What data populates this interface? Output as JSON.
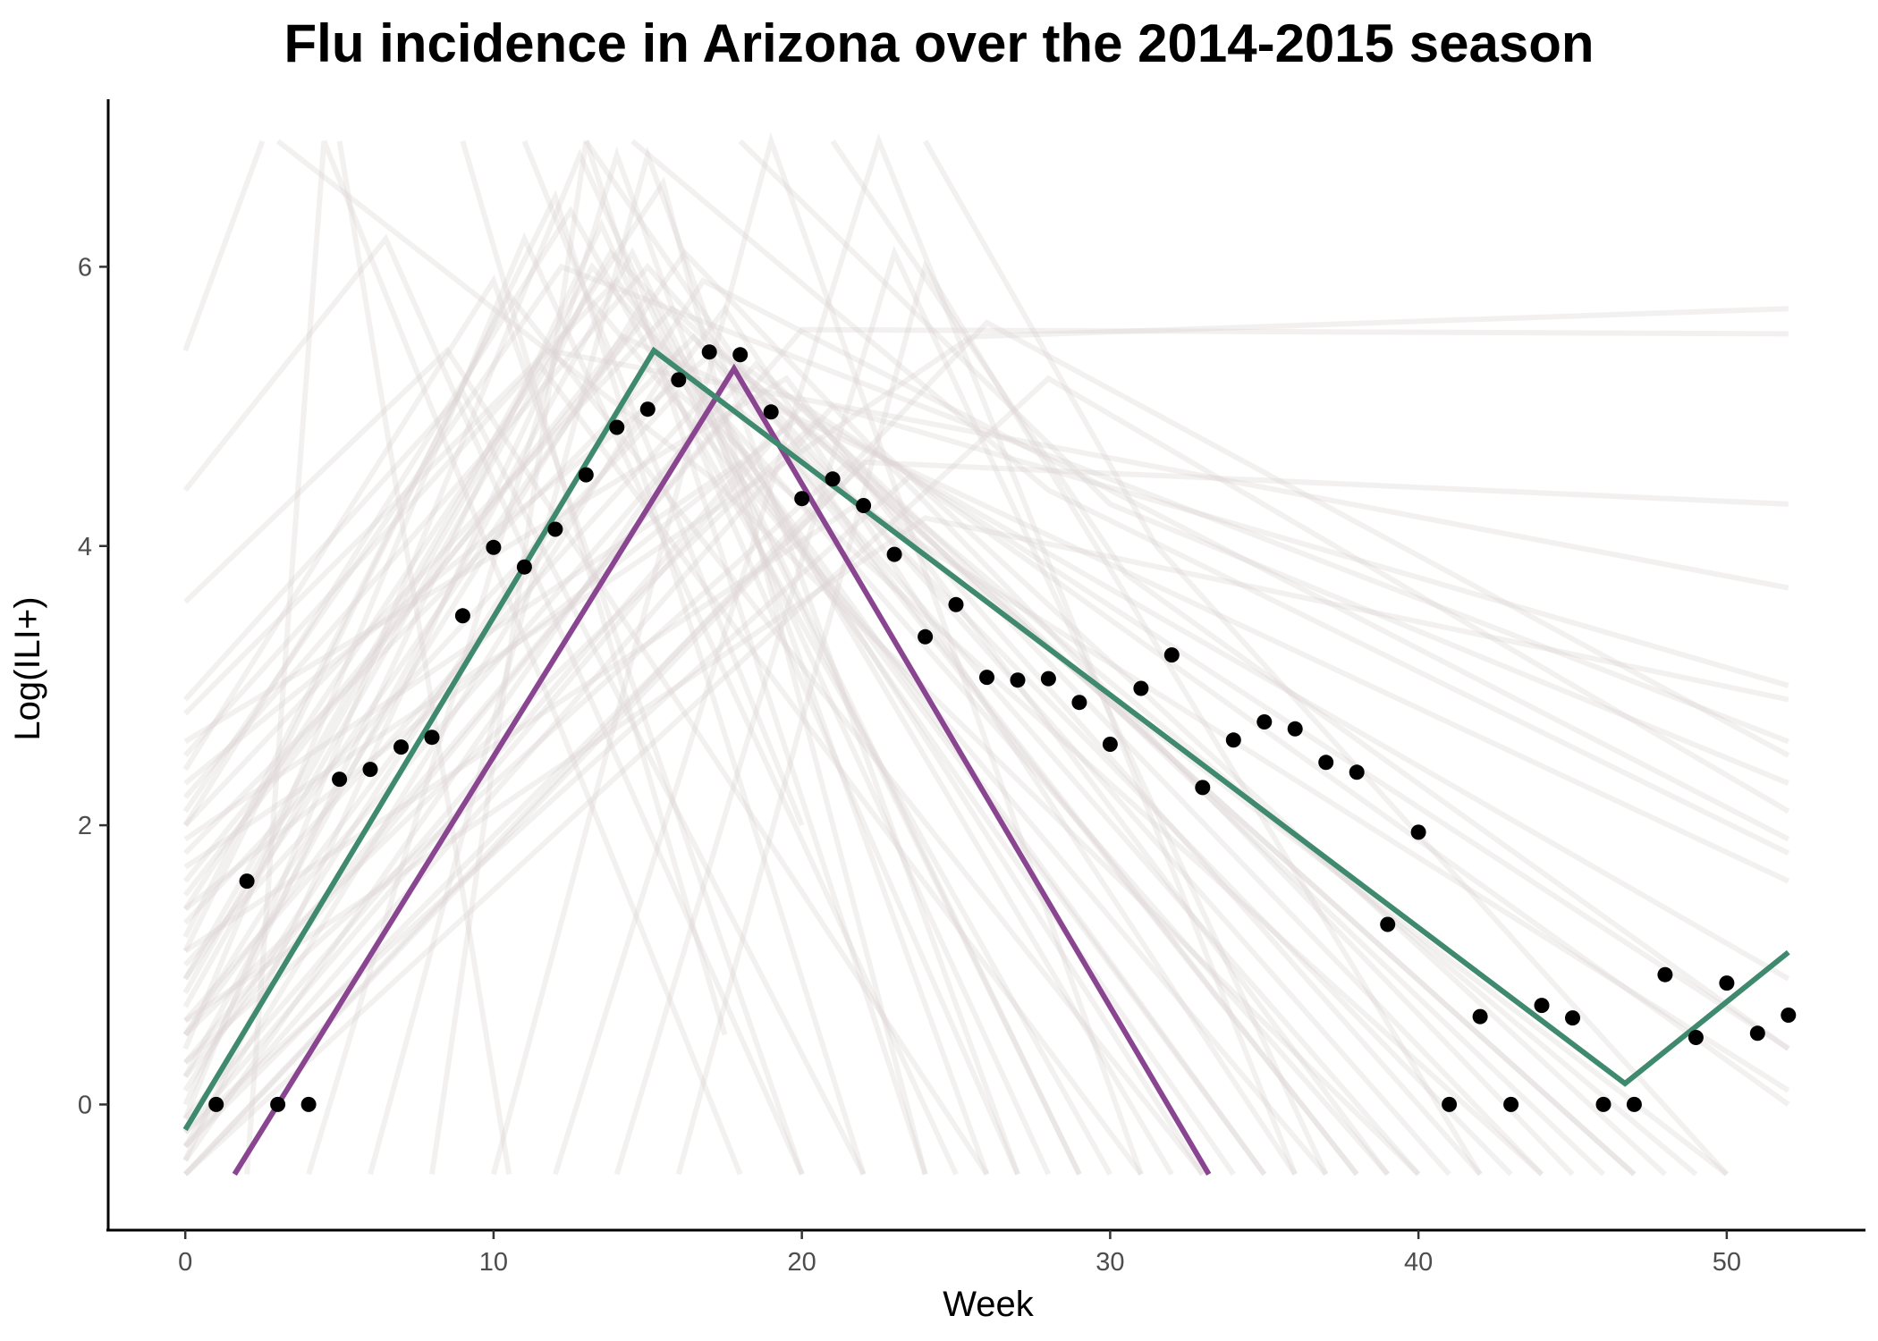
{
  "chart_data": {
    "type": "line",
    "title": "Flu incidence in Arizona over the 2014-2015 season",
    "xlabel": "Week",
    "ylabel": "Log(ILI+)",
    "xlim": [
      -2.5,
      54.5
    ],
    "ylim": [
      -0.9,
      7.2
    ],
    "x_ticks": [
      0,
      10,
      20,
      30,
      40,
      50
    ],
    "y_ticks": [
      0,
      2,
      4,
      6
    ],
    "grid": false,
    "legend": "none",
    "observed": {
      "x": [
        1,
        2,
        3,
        4,
        5,
        6,
        7,
        8,
        9,
        10,
        11,
        12,
        13,
        14,
        15,
        16,
        17,
        18,
        19,
        20,
        21,
        22,
        23,
        24,
        25,
        26,
        27,
        28,
        29,
        30,
        31,
        32,
        33,
        34,
        35,
        36,
        37,
        38,
        39,
        40,
        41,
        42,
        43,
        44,
        45,
        46,
        47,
        48,
        49,
        50,
        51,
        52
      ],
      "y": [
        0.0,
        1.6,
        0.0,
        0.0,
        2.33,
        2.4,
        2.56,
        2.63,
        3.5,
        3.99,
        3.85,
        4.12,
        4.51,
        4.85,
        4.98,
        5.19,
        5.39,
        5.37,
        4.96,
        4.34,
        4.48,
        4.29,
        3.94,
        3.35,
        3.58,
        3.06,
        3.04,
        3.05,
        2.88,
        2.58,
        2.98,
        3.22,
        2.27,
        2.61,
        2.74,
        2.69,
        2.45,
        2.38,
        1.29,
        1.95,
        0.0,
        0.63,
        0.0,
        0.71,
        0.62,
        0.0,
        0.0,
        0.93,
        0.48,
        0.87,
        0.51,
        0.64
      ],
      "color": "#000000"
    },
    "fit_green": {
      "x": [
        0,
        15.2,
        46.7,
        52
      ],
      "y": [
        -0.18,
        5.4,
        0.15,
        1.09
      ],
      "color": "#3f8a6e"
    },
    "fit_purple": {
      "x": [
        1.6,
        17.8,
        33.2
      ],
      "y": [
        -0.5,
        5.27,
        -0.5
      ],
      "color": "#8a4590"
    },
    "background_color": "#dcd4d4",
    "background_opacity": 0.35,
    "background_curves": [
      {
        "x": [
          0,
          14.5,
          29
        ],
        "y": [
          0.2,
          6.1,
          -0.5
        ]
      },
      {
        "x": [
          0,
          12.0,
          22
        ],
        "y": [
          1.1,
          6.5,
          -0.5
        ]
      },
      {
        "x": [
          0,
          16.0,
          33
        ],
        "y": [
          -0.3,
          5.4,
          -0.5
        ]
      },
      {
        "x": [
          0,
          17.5,
          36
        ],
        "y": [
          0.5,
          5.7,
          -0.5
        ]
      },
      {
        "x": [
          0,
          10.0,
          20
        ],
        "y": [
          2.4,
          5.9,
          -0.5
        ]
      },
      {
        "x": [
          0,
          13.5,
          27
        ],
        "y": [
          0.0,
          6.3,
          -0.5
        ]
      },
      {
        "x": [
          0,
          19.0,
          40
        ],
        "y": [
          -0.1,
          4.8,
          -0.5
        ]
      },
      {
        "x": [
          0,
          15.5,
          24
        ],
        "y": [
          1.4,
          6.6,
          -0.5
        ]
      },
      {
        "x": [
          0,
          11.5,
          31
        ],
        "y": [
          0.8,
          5.3,
          -0.5
        ]
      },
      {
        "x": [
          0,
          14.0,
          35
        ],
        "y": [
          2.8,
          5.9,
          -0.5
        ]
      },
      {
        "x": [
          0,
          16.5,
          38
        ],
        "y": [
          1.8,
          5.5,
          -0.5
        ]
      },
      {
        "x": [
          0,
          8.5,
          26
        ],
        "y": [
          3.6,
          5.4,
          -0.5
        ]
      },
      {
        "x": [
          0,
          20.0,
          44
        ],
        "y": [
          -0.2,
          5.0,
          -0.5
        ]
      },
      {
        "x": [
          0,
          21.5,
          42
        ],
        "y": [
          0.3,
          4.6,
          -0.5
        ]
      },
      {
        "x": [
          0,
          12.5,
          30
        ],
        "y": [
          2.0,
          6.4,
          -0.5
        ]
      },
      {
        "x": [
          0,
          17.0,
          32
        ],
        "y": [
          1.0,
          5.1,
          -0.5
        ]
      },
      {
        "x": [
          0,
          13.0,
          37
        ],
        "y": [
          -0.4,
          5.8,
          -0.5
        ]
      },
      {
        "x": [
          0,
          18.5,
          46
        ],
        "y": [
          0.6,
          5.3,
          -0.5
        ]
      },
      {
        "x": [
          0,
          15.0,
          41
        ],
        "y": [
          2.2,
          6.0,
          -0.5
        ]
      },
      {
        "x": [
          0,
          22.5,
          48
        ],
        "y": [
          -0.3,
          4.7,
          -0.5
        ]
      },
      {
        "x": [
          0,
          11.0,
          25
        ],
        "y": [
          0.4,
          6.2,
          -0.5
        ]
      },
      {
        "x": [
          0,
          14.8,
          34
        ],
        "y": [
          1.6,
          5.6,
          -0.5
        ]
      },
      {
        "x": [
          0,
          16.2,
          45
        ],
        "y": [
          0.9,
          6.1,
          -0.5
        ]
      },
      {
        "x": [
          0,
          19.5,
          39
        ],
        "y": [
          2.6,
          5.2,
          -0.5
        ]
      },
      {
        "x": [
          0,
          12.8,
          28
        ],
        "y": [
          -0.1,
          6.8,
          -0.5
        ]
      },
      {
        "x": [
          0,
          17.8,
          50
        ],
        "y": [
          0.2,
          5.0,
          -0.5
        ]
      },
      {
        "x": [
          0,
          23.5,
          52
        ],
        "y": [
          -0.2,
          4.5,
          0.0
        ]
      },
      {
        "x": [
          0,
          10.5,
          33
        ],
        "y": [
          1.2,
          5.8,
          -0.5
        ]
      },
      {
        "x": [
          0,
          13.8,
          43
        ],
        "y": [
          0.7,
          6.1,
          -0.5
        ]
      },
      {
        "x": [
          0,
          15.8,
          47
        ],
        "y": [
          2.0,
          5.7,
          -0.5
        ]
      },
      {
        "x": [
          0,
          18.0,
          52
        ],
        "y": [
          -0.4,
          5.3,
          0.4
        ]
      },
      {
        "x": [
          0,
          20.5,
          52
        ],
        "y": [
          0.5,
          4.9,
          0.9
        ]
      },
      {
        "x": [
          0,
          14.2,
          52
        ],
        "y": [
          1.5,
          5.5,
          1.6
        ]
      },
      {
        "x": [
          0,
          16.8,
          52
        ],
        "y": [
          0.1,
          5.9,
          1.9
        ]
      },
      {
        "x": [
          0,
          12.2,
          52
        ],
        "y": [
          2.1,
          6.0,
          2.6
        ]
      },
      {
        "x": [
          0,
          21.0,
          52
        ],
        "y": [
          -0.3,
          5.0,
          3.0
        ]
      },
      {
        "x": [
          0,
          11.8,
          52
        ],
        "y": [
          2.5,
          5.4,
          3.7
        ]
      },
      {
        "x": [
          0,
          24.0,
          52
        ],
        "y": [
          0.6,
          4.2,
          2.9
        ]
      },
      {
        "x": [
          0,
          25.5,
          52
        ],
        "y": [
          1.7,
          5.5,
          5.7
        ]
      },
      {
        "x": [
          0,
          20.0,
          52
        ],
        "y": [
          0.3,
          5.55,
          5.52
        ]
      },
      {
        "x": [
          0,
          22.0,
          52
        ],
        "y": [
          -0.5,
          4.6,
          4.3
        ]
      },
      {
        "x": [
          0,
          6.5,
          20
        ],
        "y": [
          4.4,
          6.2,
          -0.5
        ]
      },
      {
        "x": [
          0,
          2.5
        ],
        "y": [
          5.4,
          6.9
        ]
      },
      {
        "x": [
          2.0,
          4.5,
          18
        ],
        "y": [
          -0.5,
          6.9,
          -0.5
        ]
      },
      {
        "x": [
          4.0,
          14.0,
          26
        ],
        "y": [
          -0.5,
          6.8,
          -0.5
        ]
      },
      {
        "x": [
          6.0,
          15.0,
          27
        ],
        "y": [
          -0.5,
          6.8,
          -0.5
        ]
      },
      {
        "x": [
          8.0,
          13.0,
          24
        ],
        "y": [
          -0.5,
          6.9,
          -0.5
        ]
      },
      {
        "x": [
          10.0,
          19.0,
          31
        ],
        "y": [
          -0.5,
          6.9,
          -0.5
        ]
      },
      {
        "x": [
          12.0,
          22.5,
          36
        ],
        "y": [
          -0.5,
          6.9,
          -0.5
        ]
      },
      {
        "x": [
          14.0,
          23.0,
          37
        ],
        "y": [
          -0.5,
          6.1,
          -0.5
        ]
      },
      {
        "x": [
          16.0,
          24.0,
          42
        ],
        "y": [
          -0.5,
          6.0,
          -0.5
        ]
      },
      {
        "x": [
          5.0,
          10.5
        ],
        "y": [
          6.9,
          -0.5
        ]
      },
      {
        "x": [
          9.0,
          17.5
        ],
        "y": [
          6.9,
          0.5
        ]
      },
      {
        "x": [
          11.0,
          20.0
        ],
        "y": [
          6.9,
          2.0
        ]
      },
      {
        "x": [
          13.0,
          22.0,
          38
        ],
        "y": [
          6.9,
          4.0,
          -0.5
        ]
      },
      {
        "x": [
          3.0,
          17.0,
          40
        ],
        "y": [
          6.9,
          4.5,
          -0.5
        ]
      },
      {
        "x": [
          14.5,
          28.0,
          52
        ],
        "y": [
          6.9,
          4.4,
          1.8
        ]
      },
      {
        "x": [
          18.0,
          30.0,
          52
        ],
        "y": [
          6.9,
          4.3,
          2.3
        ]
      },
      {
        "x": [
          21.0,
          30.5,
          52
        ],
        "y": [
          6.9,
          3.8,
          0.4
        ]
      },
      {
        "x": [
          24.0,
          31.5,
          50
        ],
        "y": [
          6.9,
          4.0,
          -0.5
        ]
      },
      {
        "x": [
          0,
          9.0,
          22
        ],
        "y": [
          2.9,
          5.1,
          -0.5
        ]
      },
      {
        "x": [
          0,
          15.0,
          29
        ],
        "y": [
          0.5,
          5.8,
          -0.5
        ]
      },
      {
        "x": [
          0,
          18.0,
          35
        ],
        "y": [
          1.9,
          4.6,
          -0.5
        ]
      },
      {
        "x": [
          0,
          16.0,
          44
        ],
        "y": [
          1.3,
          5.1,
          -0.5
        ]
      },
      {
        "x": [
          0,
          13.2,
          39
        ],
        "y": [
          0.9,
          6.0,
          -0.5
        ]
      },
      {
        "x": [
          0,
          17.2,
          49
        ],
        "y": [
          2.3,
          5.4,
          -0.5
        ]
      },
      {
        "x": [
          0,
          19.8,
          47
        ],
        "y": [
          1.4,
          4.9,
          -0.5
        ]
      },
      {
        "x": [
          0,
          21.8,
          52
        ],
        "y": [
          1.1,
          4.3,
          0.1
        ]
      },
      {
        "x": [
          0,
          26.0,
          52
        ],
        "y": [
          -0.5,
          5.6,
          2.5
        ]
      },
      {
        "x": [
          0,
          28.0,
          52
        ],
        "y": [
          -0.5,
          5.2,
          2.1
        ]
      }
    ]
  }
}
